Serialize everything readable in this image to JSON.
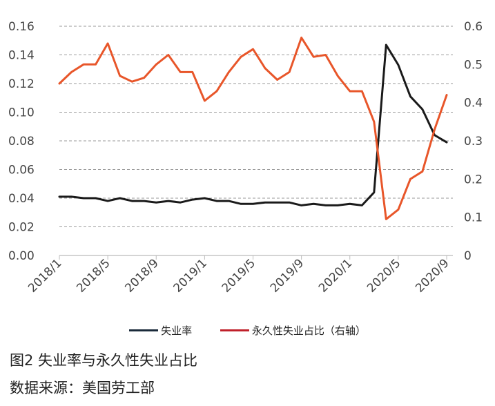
{
  "chart_data": {
    "type": "line",
    "x": [
      "2018/1",
      "2018/2",
      "2018/3",
      "2018/4",
      "2018/5",
      "2018/6",
      "2018/7",
      "2018/8",
      "2018/9",
      "2018/10",
      "2018/11",
      "2018/12",
      "2019/1",
      "2019/2",
      "2019/3",
      "2019/4",
      "2019/5",
      "2019/6",
      "2019/7",
      "2019/8",
      "2019/9",
      "2019/10",
      "2019/11",
      "2019/12",
      "2020/1",
      "2020/2",
      "2020/3",
      "2020/4",
      "2020/5",
      "2020/6",
      "2020/7",
      "2020/8",
      "2020/9"
    ],
    "x_tick_labels": [
      "2018/1",
      "2018/5",
      "2018/9",
      "2019/1",
      "2019/5",
      "2019/9",
      "2020/1",
      "2020/5",
      "2020/9"
    ],
    "y_left_ticks": [
      "0.00",
      "0.02",
      "0.04",
      "0.06",
      "0.08",
      "0.10",
      "0.12",
      "0.14",
      "0.16"
    ],
    "y_right_ticks": [
      "0",
      "0.1",
      "0.2",
      "0.3",
      "0.4",
      "0.5",
      "0.6"
    ],
    "ylim_left": [
      0,
      0.16
    ],
    "ylim_right": [
      0,
      0.6
    ],
    "grid": "horizontal dashed",
    "legend_position": "bottom",
    "series": [
      {
        "name": "失业率",
        "axis": "left",
        "color": "#1a1a1a",
        "values": [
          0.041,
          0.041,
          0.04,
          0.04,
          0.038,
          0.04,
          0.038,
          0.038,
          0.037,
          0.038,
          0.037,
          0.039,
          0.04,
          0.038,
          0.038,
          0.036,
          0.036,
          0.037,
          0.037,
          0.037,
          0.035,
          0.036,
          0.035,
          0.035,
          0.036,
          0.035,
          0.044,
          0.147,
          0.133,
          0.111,
          0.102,
          0.084,
          0.079
        ]
      },
      {
        "name": "永久性失业占比（右轴）",
        "axis": "right",
        "color": "#e8562a",
        "values": [
          0.45,
          0.48,
          0.5,
          0.5,
          0.555,
          0.47,
          0.455,
          0.465,
          0.5,
          0.525,
          0.48,
          0.48,
          0.405,
          0.43,
          0.48,
          0.52,
          0.54,
          0.49,
          0.46,
          0.48,
          0.57,
          0.52,
          0.525,
          0.47,
          0.43,
          0.43,
          0.35,
          0.095,
          0.12,
          0.2,
          0.22,
          0.33,
          0.42
        ]
      }
    ]
  },
  "caption": {
    "figure_title": "图2 失业率与永久性失业占比",
    "source": "数据来源：美国劳工部"
  }
}
